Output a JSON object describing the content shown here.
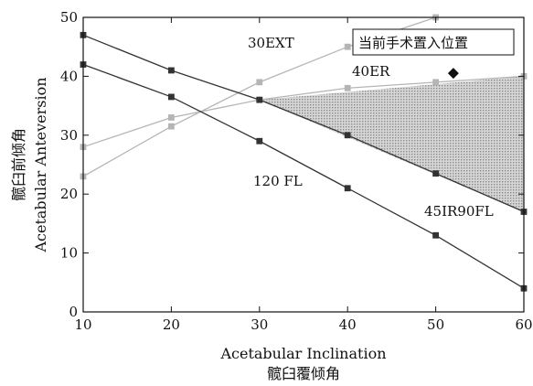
{
  "chart_data": {
    "type": "line",
    "xlabel": "Acetabular Inclination",
    "xlabel_cn": "髋臼覆倾角",
    "ylabel": "Acetabular Anteversion",
    "ylabel_cn": "髋臼前倾角",
    "xlim": [
      10,
      60
    ],
    "ylim": [
      0,
      50
    ],
    "xticks": [
      "10",
      "20",
      "30",
      "40",
      "50",
      "60"
    ],
    "yticks": [
      "0",
      "10",
      "20",
      "30",
      "40",
      "50"
    ],
    "grid": false,
    "series": [
      {
        "name": "30EXT",
        "color": "#b5b5b5",
        "x": [
          10,
          20,
          30,
          40,
          50
        ],
        "y": [
          23,
          31.5,
          39,
          45,
          50
        ]
      },
      {
        "name": "40ER",
        "color": "#b5b5b5",
        "x": [
          10,
          20,
          30,
          40,
          50,
          60
        ],
        "y": [
          28,
          33,
          36,
          38,
          39,
          40
        ]
      },
      {
        "name": "120 FL",
        "color": "#333333",
        "x": [
          10,
          20,
          30,
          40,
          50,
          60
        ],
        "y": [
          42,
          36.5,
          29,
          21,
          13,
          4
        ]
      },
      {
        "name": "45IR90FL",
        "color": "#333333",
        "x": [
          10,
          20,
          30,
          40,
          50,
          60
        ],
        "y": [
          47,
          41,
          36,
          30,
          23.5,
          17
        ]
      }
    ],
    "shaded_region": {
      "fill": "#bdbdbd",
      "x": [
        30,
        60,
        60
      ],
      "y": [
        36,
        40,
        17
      ]
    },
    "annotations": [
      {
        "text": "当前手术置入位置",
        "type": "legend-box"
      },
      {
        "marker": "diamond",
        "x": 52,
        "y": 40.5,
        "color": "#111111"
      }
    ]
  }
}
